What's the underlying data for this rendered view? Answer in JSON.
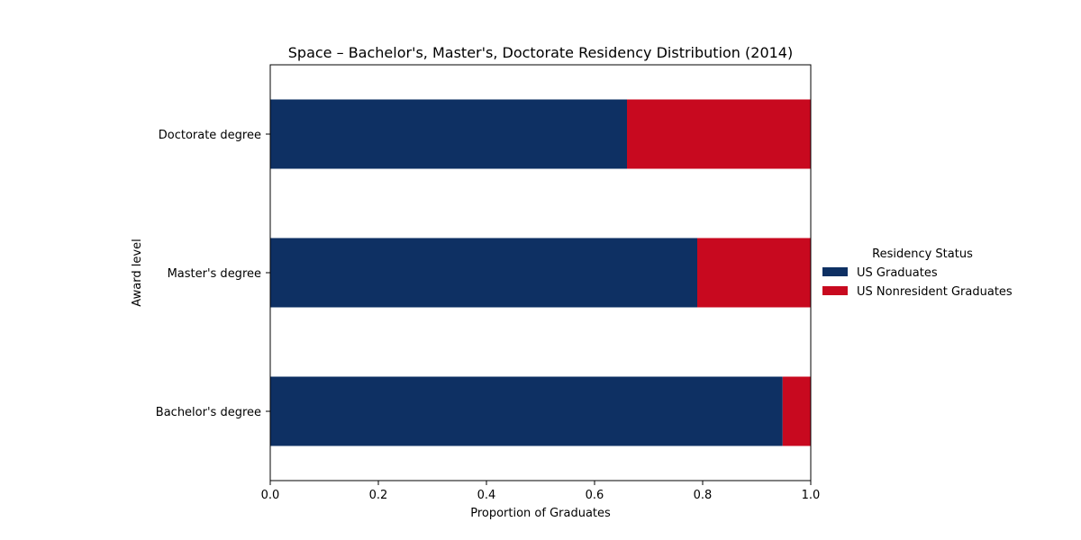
{
  "chart_data": {
    "type": "bar",
    "orientation": "horizontal",
    "stacked": true,
    "title": "Space – Bachelor's, Master's, Doctorate Residency Distribution (2014)",
    "xlabel": "Proportion of Graduates",
    "ylabel": "Award level",
    "xlim": [
      0,
      1
    ],
    "xticks": [
      0.0,
      0.2,
      0.4,
      0.6,
      0.8,
      1.0
    ],
    "xtick_labels": [
      "0.0",
      "0.2",
      "0.4",
      "0.6",
      "0.8",
      "1.0"
    ],
    "categories": [
      "Bachelor's degree",
      "Master's degree",
      "Doctorate degree"
    ],
    "series": [
      {
        "name": "US Graduates",
        "color": "#0e3063",
        "values": [
          0.948,
          0.79,
          0.66
        ]
      },
      {
        "name": "US Nonresident Graduates",
        "color": "#c8091f",
        "values": [
          0.052,
          0.21,
          0.34
        ]
      }
    ],
    "legend": {
      "title": "Residency Status",
      "placement": "right"
    },
    "grid": false
  }
}
